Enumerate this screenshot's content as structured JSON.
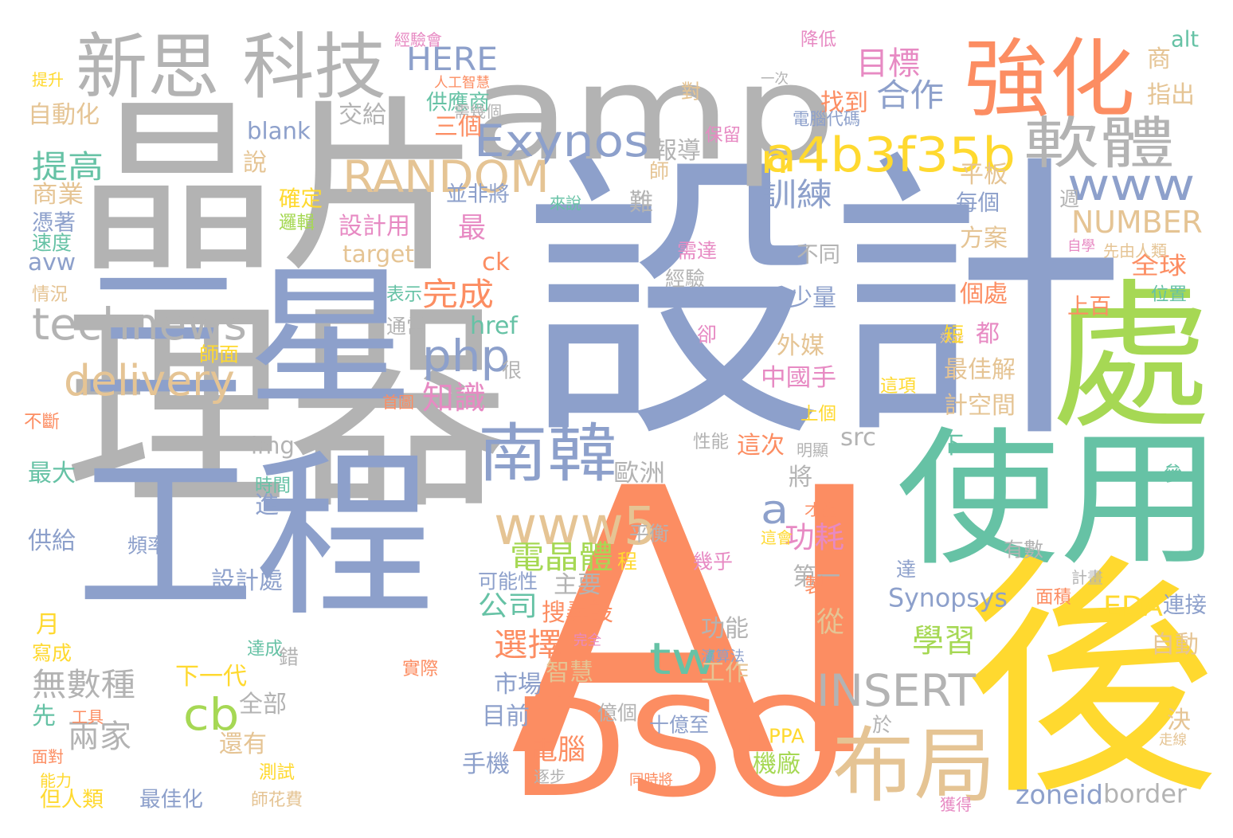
{
  "colors": {
    "gray": "#b3b3b3",
    "blue": "#8da0cb",
    "orange": "#fc8d62",
    "green": "#66c2a5",
    "lime": "#a6d854",
    "yellow": "#ffd92f",
    "tan": "#e5c494",
    "pink": "#e78ac3"
  },
  "words": [
    {
      "text": "設計",
      "color": "blue",
      "vertical": false
    },
    {
      "text": "晶片",
      "color": "gray",
      "vertical": false
    },
    {
      "text": "AI",
      "color": "orange",
      "vertical": false
    },
    {
      "text": "理器",
      "color": "gray",
      "vertical": false
    },
    {
      "text": "三星",
      "color": "blue",
      "vertical": false
    },
    {
      "text": "工程",
      "color": "blue",
      "vertical": false
    },
    {
      "text": "amp",
      "color": "gray",
      "vertical": false
    },
    {
      "text": "處",
      "color": "lime",
      "vertical": false
    },
    {
      "text": "使用",
      "color": "green",
      "vertical": false
    },
    {
      "text": "後",
      "color": "yellow",
      "vertical": false
    },
    {
      "text": "DSO",
      "color": "orange",
      "vertical": false
    },
    {
      "text": "強化",
      "color": "orange",
      "vertical": false
    },
    {
      "text": "新思 科技",
      "color": "gray",
      "vertical": false
    },
    {
      "text": "布局",
      "color": "tan",
      "vertical": false
    },
    {
      "text": "南韓",
      "color": "blue",
      "vertical": false
    },
    {
      "text": "technews",
      "color": "gray",
      "vertical": false
    },
    {
      "text": "Exynos",
      "color": "blue",
      "vertical": false
    },
    {
      "text": "a4b3f35b",
      "color": "yellow",
      "vertical": false
    },
    {
      "text": "軟體",
      "color": "gray",
      "vertical": false
    },
    {
      "text": "www5",
      "color": "tan",
      "vertical": false
    },
    {
      "text": "delivery",
      "color": "tan",
      "vertical": false
    },
    {
      "text": "www",
      "color": "blue",
      "vertical": false
    },
    {
      "text": "RANDOM",
      "color": "tan",
      "vertical": false
    },
    {
      "text": "INSERT",
      "color": "gray",
      "vertical": false
    },
    {
      "text": "php",
      "color": "blue",
      "vertical": false
    },
    {
      "text": "HERE",
      "color": "blue",
      "vertical": false
    },
    {
      "text": "NUMBER",
      "color": "tan",
      "vertical": false
    },
    {
      "text": "tw",
      "color": "green",
      "vertical": false
    },
    {
      "text": "cb",
      "color": "lime",
      "vertical": false
    },
    {
      "text": "n",
      "color": "yellow",
      "vertical": false
    },
    {
      "text": "a",
      "color": "blue",
      "vertical": false
    },
    {
      "text": "目標",
      "color": "pink",
      "vertical": false
    },
    {
      "text": "合作",
      "color": "blue",
      "vertical": false
    },
    {
      "text": "提高",
      "color": "green",
      "vertical": false
    },
    {
      "text": "訓練",
      "color": "blue",
      "vertical": false
    },
    {
      "text": "完成",
      "color": "orange",
      "vertical": false
    },
    {
      "text": "知識",
      "color": "pink",
      "vertical": false
    },
    {
      "text": "電晶體",
      "color": "lime",
      "vertical": false
    },
    {
      "text": "功耗",
      "color": "pink",
      "vertical": false
    },
    {
      "text": "選擇",
      "color": "orange",
      "vertical": false
    },
    {
      "text": "學習",
      "color": "lime",
      "vertical": false
    },
    {
      "text": "無數種",
      "color": "gray",
      "vertical": false
    },
    {
      "text": "兩家",
      "color": "gray",
      "vertical": false
    },
    {
      "text": "公司",
      "color": "green",
      "vertical": false
    },
    {
      "text": "電腦",
      "color": "orange",
      "vertical": false
    },
    {
      "text": "Synopsys",
      "color": "blue",
      "vertical": false
    },
    {
      "text": "zoneid",
      "color": "blue",
      "vertical": false
    },
    {
      "text": "border",
      "color": "gray",
      "vertical": false
    },
    {
      "text": "EDA",
      "color": "yellow",
      "vertical": false
    },
    {
      "text": "找到",
      "color": "orange",
      "vertical": false
    },
    {
      "text": "供應商",
      "color": "green",
      "vertical": false
    },
    {
      "text": "blank",
      "color": "blue",
      "vertical": false
    },
    {
      "text": "說",
      "color": "tan",
      "vertical": false
    },
    {
      "text": "交給",
      "color": "gray",
      "vertical": false
    },
    {
      "text": "自動化",
      "color": "tan",
      "vertical": false
    },
    {
      "text": "商業",
      "color": "tan",
      "vertical": false
    },
    {
      "text": "並非將",
      "color": "blue",
      "vertical": false
    },
    {
      "text": "報導",
      "color": "gray",
      "vertical": false
    },
    {
      "text": "最",
      "color": "pink",
      "vertical": false
    },
    {
      "text": "設計用",
      "color": "pink",
      "vertical": false
    },
    {
      "text": "target",
      "color": "tan",
      "vertical": false
    },
    {
      "text": "ck",
      "color": "orange",
      "vertical": false
    },
    {
      "text": "avw",
      "color": "blue",
      "vertical": false
    },
    {
      "text": "href",
      "color": "green",
      "vertical": false
    },
    {
      "text": "平板",
      "color": "tan",
      "vertical": false
    },
    {
      "text": "方案",
      "color": "tan",
      "vertical": false
    },
    {
      "text": "全球",
      "color": "orange",
      "vertical": false
    },
    {
      "text": "個處",
      "color": "orange",
      "vertical": false
    },
    {
      "text": "都",
      "color": "pink",
      "vertical": false
    },
    {
      "text": "最佳解",
      "color": "tan",
      "vertical": false
    },
    {
      "text": "計空間",
      "color": "tan",
      "vertical": false
    },
    {
      "text": "少量",
      "color": "blue",
      "vertical": false
    },
    {
      "text": "外媒",
      "color": "tan",
      "vertical": false
    },
    {
      "text": "中國手",
      "color": "pink",
      "vertical": false
    },
    {
      "text": "這次",
      "color": "orange",
      "vertical": false
    },
    {
      "text": "下",
      "color": "green",
      "vertical": false
    },
    {
      "text": "將",
      "color": "gray",
      "vertical": false
    },
    {
      "text": "歐洲",
      "color": "gray",
      "vertical": false
    },
    {
      "text": "img",
      "color": "gray",
      "vertical": false
    },
    {
      "text": "src",
      "color": "gray",
      "vertical": false
    },
    {
      "text": "最大",
      "color": "green",
      "vertical": false
    },
    {
      "text": "供給",
      "color": "blue",
      "vertical": false
    },
    {
      "text": "月",
      "color": "yellow",
      "vertical": false
    },
    {
      "text": "設計處",
      "color": "blue",
      "vertical": false
    },
    {
      "text": "主要",
      "color": "gray",
      "vertical": false
    },
    {
      "text": "搜尋設",
      "color": "orange",
      "vertical": false
    },
    {
      "text": "第一",
      "color": "gray",
      "vertical": false
    },
    {
      "text": "從",
      "color": "tan",
      "vertical": false
    },
    {
      "text": "功能",
      "color": "gray",
      "vertical": false
    },
    {
      "text": "智慧",
      "color": "tan",
      "vertical": false
    },
    {
      "text": "工作",
      "color": "tan",
      "vertical": false
    },
    {
      "text": "市場",
      "color": "blue",
      "vertical": false
    },
    {
      "text": "下一代",
      "color": "yellow",
      "vertical": false
    },
    {
      "text": "全部",
      "color": "gray",
      "vertical": false
    },
    {
      "text": "目前",
      "color": "blue",
      "vertical": false
    },
    {
      "text": "還有",
      "color": "tan",
      "vertical": false
    },
    {
      "text": "手機",
      "color": "blue",
      "vertical": false
    },
    {
      "text": "機廠",
      "color": "lime",
      "vertical": false
    },
    {
      "text": "最佳化",
      "color": "blue",
      "vertical": false
    },
    {
      "text": "但人類",
      "color": "yellow",
      "vertical": false
    },
    {
      "text": "師花費",
      "color": "tan",
      "vertical": false
    },
    {
      "text": "測試",
      "color": "yellow",
      "vertical": false
    },
    {
      "text": "十億至",
      "color": "blue",
      "vertical": false
    },
    {
      "text": "自動",
      "color": "tan",
      "vertical": false
    },
    {
      "text": "指出",
      "color": "tan",
      "vertical": false
    },
    {
      "text": "alt",
      "color": "green",
      "vertical": false
    },
    {
      "text": "商",
      "color": "tan",
      "vertical": false
    },
    {
      "text": "每個",
      "color": "blue",
      "vertical": false
    },
    {
      "text": "連接",
      "color": "blue",
      "vertical": false
    },
    {
      "text": "決",
      "color": "tan",
      "vertical": false
    },
    {
      "text": "走線",
      "color": "tan",
      "vertical": false
    },
    {
      "text": "可能性",
      "color": "blue",
      "vertical": false
    },
    {
      "text": "PPA",
      "color": "yellow",
      "vertical": false
    },
    {
      "text": "平衡",
      "color": "gray",
      "vertical": false
    },
    {
      "text": "經驗",
      "color": "gray",
      "vertical": false
    },
    {
      "text": "不同",
      "color": "gray",
      "vertical": false
    },
    {
      "text": "需達",
      "color": "pink",
      "vertical": false
    },
    {
      "text": "表示",
      "color": "green",
      "vertical": false
    },
    {
      "text": "通常",
      "color": "gray",
      "vertical": false
    },
    {
      "text": "性能",
      "color": "gray",
      "vertical": false
    },
    {
      "text": "有數",
      "color": "gray",
      "vertical": false
    },
    {
      "text": "億個",
      "color": "gray",
      "vertical": false
    },
    {
      "text": "幾乎",
      "color": "pink",
      "vertical": false
    },
    {
      "text": "位置",
      "color": "green",
      "vertical": false
    },
    {
      "text": "上百",
      "color": "orange",
      "vertical": false
    },
    {
      "text": "先由人類",
      "color": "tan",
      "vertical": false
    },
    {
      "text": "自學",
      "color": "pink",
      "vertical": false
    },
    {
      "text": "面積",
      "color": "orange",
      "vertical": false
    },
    {
      "text": "實際",
      "color": "orange",
      "vertical": false
    },
    {
      "text": "演算法",
      "color": "blue",
      "vertical": false
    },
    {
      "text": "完全",
      "color": "pink",
      "vertical": false
    },
    {
      "text": "同時將",
      "color": "orange",
      "vertical": false
    },
    {
      "text": "獲得",
      "color": "pink",
      "vertical": false
    },
    {
      "text": "經驗會",
      "color": "pink",
      "vertical": false
    },
    {
      "text": "人工智慧",
      "color": "orange",
      "vertical": false
    },
    {
      "text": "需幾個",
      "color": "gray",
      "vertical": false
    },
    {
      "text": "三個",
      "color": "orange",
      "vertical": false
    },
    {
      "text": "確定",
      "color": "yellow",
      "vertical": false
    },
    {
      "text": "邏輯",
      "color": "lime",
      "vertical": false
    },
    {
      "text": "憑著",
      "color": "blue",
      "vertical": false
    },
    {
      "text": "速度",
      "color": "green",
      "vertical": false
    },
    {
      "text": "情況",
      "color": "tan",
      "vertical": false
    },
    {
      "text": "師面",
      "color": "yellow",
      "vertical": false
    },
    {
      "text": "首圖",
      "color": "orange",
      "vertical": false
    },
    {
      "text": "不斷",
      "color": "orange",
      "vertical": false
    },
    {
      "text": "時間",
      "color": "green",
      "vertical": false
    },
    {
      "text": "進",
      "color": "blue",
      "vertical": false
    },
    {
      "text": "頻率",
      "color": "blue",
      "vertical": false
    },
    {
      "text": "程",
      "color": "yellow",
      "vertical": false
    },
    {
      "text": "達成",
      "color": "green",
      "vertical": false
    },
    {
      "text": "寫成",
      "color": "yellow",
      "vertical": false
    },
    {
      "text": "先",
      "color": "green",
      "vertical": false
    },
    {
      "text": "工具",
      "color": "orange",
      "vertical": false
    },
    {
      "text": "面對",
      "color": "orange",
      "vertical": false
    },
    {
      "text": "能力",
      "color": "yellow",
      "vertical": false
    },
    {
      "text": "提升",
      "color": "yellow",
      "vertical": false
    },
    {
      "text": "一次",
      "color": "gray",
      "vertical": false
    },
    {
      "text": "對",
      "color": "tan",
      "vertical": false
    },
    {
      "text": "保留",
      "color": "pink",
      "vertical": false
    },
    {
      "text": "來說",
      "color": "green",
      "vertical": false
    },
    {
      "text": "難",
      "color": "gray",
      "vertical": false
    },
    {
      "text": "師",
      "color": "tan",
      "vertical": false
    },
    {
      "text": "電腦代碼",
      "color": "blue",
      "vertical": false
    },
    {
      "text": "降低",
      "color": "pink",
      "vertical": false
    },
    {
      "text": "週",
      "color": "gray",
      "vertical": false
    },
    {
      "text": "效能",
      "color": "tan",
      "vertical": false
    },
    {
      "text": "卻",
      "color": "pink",
      "vertical": false
    },
    {
      "text": "很",
      "color": "gray",
      "vertical": false
    },
    {
      "text": "這項",
      "color": "yellow",
      "vertical": false
    },
    {
      "text": "上個",
      "color": "yellow",
      "vertical": false
    },
    {
      "text": "明顯",
      "color": "gray",
      "vertical": false
    },
    {
      "text": "才能",
      "color": "orange",
      "vertical": false
    },
    {
      "text": "這會",
      "color": "yellow",
      "vertical": false
    },
    {
      "text": "參",
      "color": "green",
      "vertical": false
    },
    {
      "text": "計畫",
      "color": "gray",
      "vertical": false
    },
    {
      "text": "達",
      "color": "blue",
      "vertical": false
    },
    {
      "text": "製",
      "color": "orange",
      "vertical": false
    },
    {
      "text": "於",
      "color": "gray",
      "vertical": false
    },
    {
      "text": "逐步",
      "color": "gray",
      "vertical": false
    },
    {
      "text": "錯",
      "color": "gray",
      "vertical": false
    },
    {
      "text": "短",
      "color": "yellow",
      "vertical": false
    }
  ]
}
